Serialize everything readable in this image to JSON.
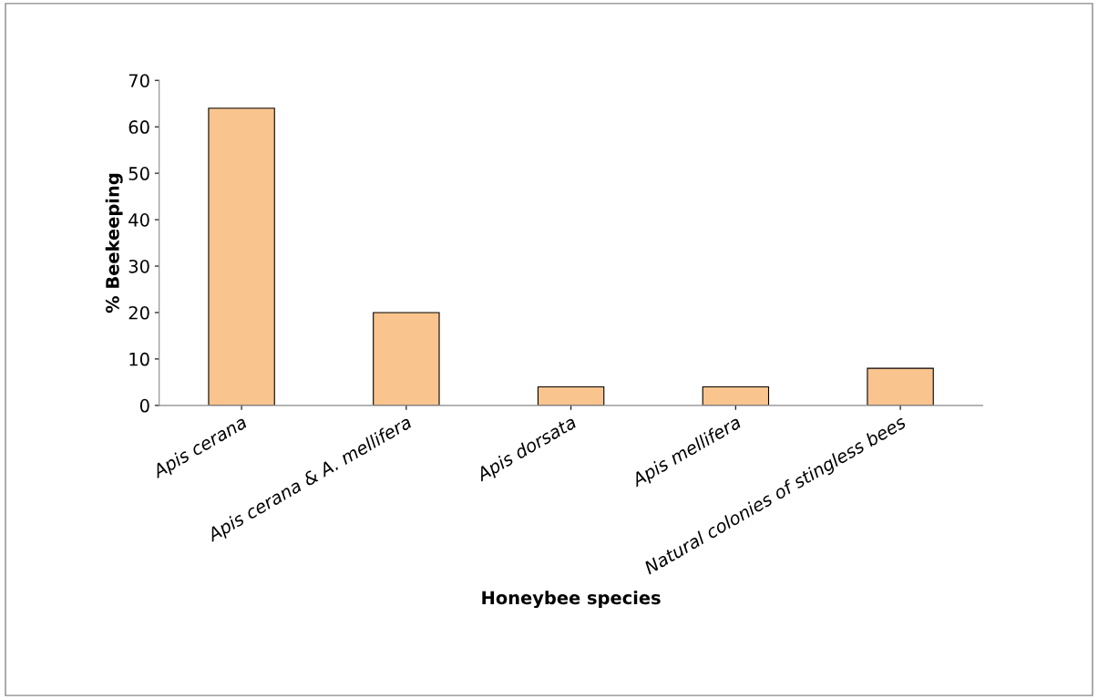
{
  "chart_data": {
    "type": "bar",
    "xlabel": "Honeybee species",
    "ylabel": "% Beekeeping",
    "categories": [
      "Apis cerana",
      "Apis cerana & A. mellifera",
      "Apis dorsata",
      "Apis mellifera",
      "Natural colonies of stingless bees"
    ],
    "values": [
      64,
      20,
      4,
      4,
      8
    ],
    "color": "#f9c48e",
    "ylim": [
      0,
      70
    ],
    "yticks": [
      0,
      10,
      20,
      30,
      40,
      50,
      60,
      70
    ],
    "grid": false
  }
}
